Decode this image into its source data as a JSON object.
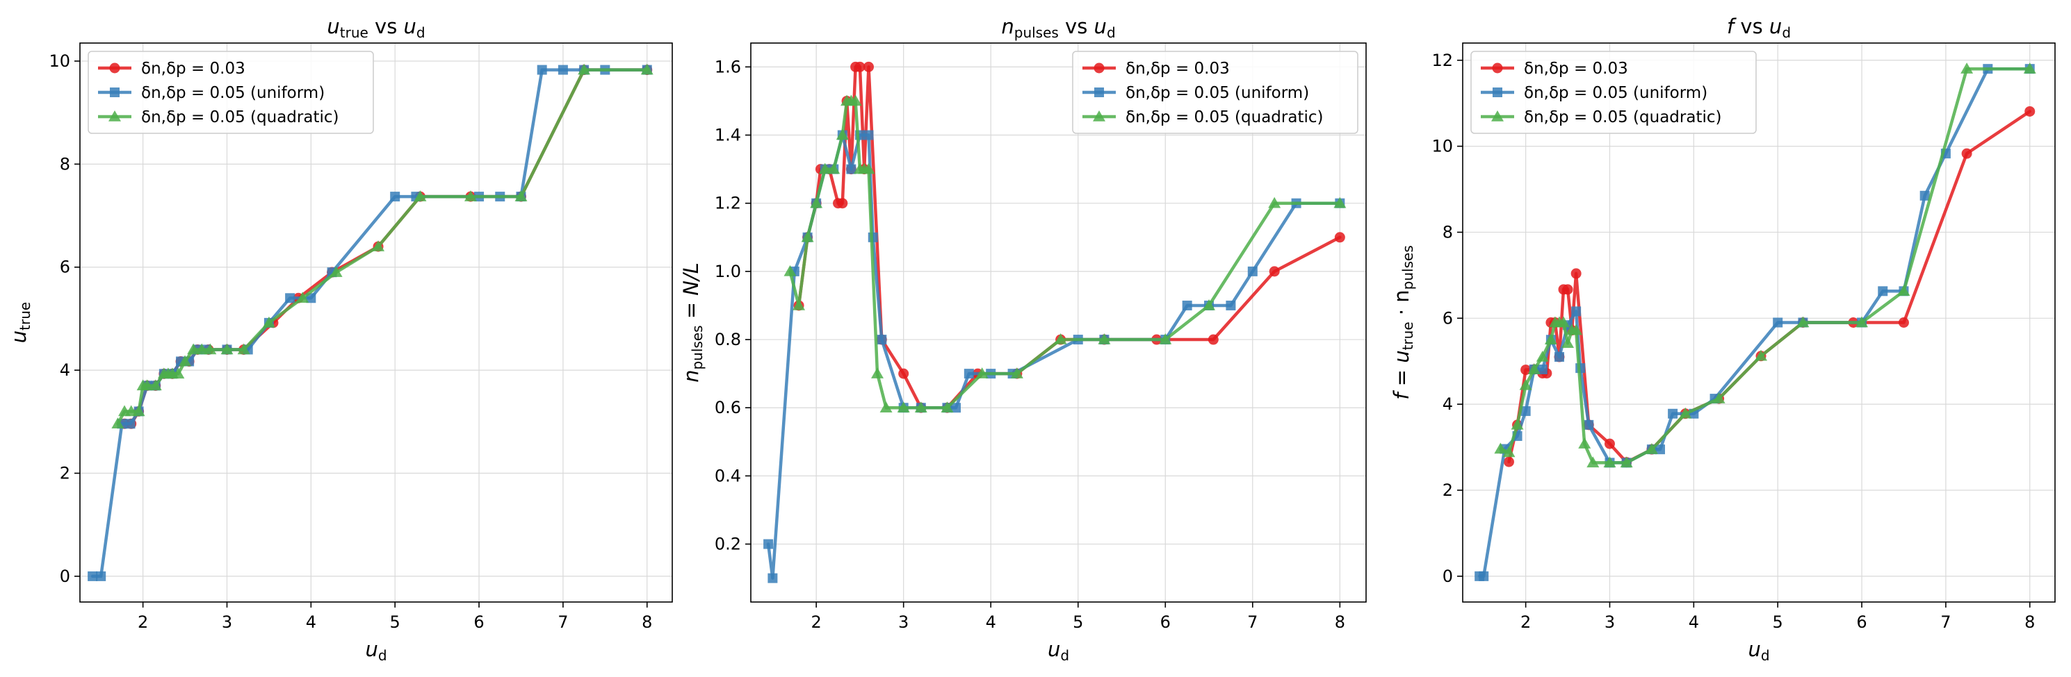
{
  "chart_data": [
    {
      "type": "line",
      "title": {
        "main": "u",
        "sub": "true",
        "rest": " vs ",
        "main2": "u",
        "sub2": "d"
      },
      "xlabel": {
        "main": "u",
        "sub": "d",
        "rest": ""
      },
      "ylabel": {
        "main": "u",
        "sub": "true",
        "rest": ""
      },
      "xlim": [
        1.25,
        8.3
      ],
      "ylim": [
        -0.5,
        10.35
      ],
      "xticks": [
        2,
        3,
        4,
        5,
        6,
        7,
        8
      ],
      "yticks": [
        0,
        2,
        4,
        6,
        8,
        10
      ],
      "ytick_format": "int",
      "grid": true,
      "legend_position": "upper-left",
      "series": [
        {
          "name": "δn,δp = 0.03",
          "color": "#e41a1c",
          "marker": "circle",
          "x": [
            1.78,
            1.86,
            1.95,
            2.05,
            2.15,
            2.25,
            2.35,
            2.45,
            2.55,
            2.65,
            2.78,
            3.0,
            3.2,
            3.55,
            3.85,
            4.25,
            4.8,
            5.3,
            5.9,
            6.5,
            7.25,
            8.0
          ],
          "y": [
            2.96,
            2.96,
            3.2,
            3.7,
            3.7,
            3.93,
            3.93,
            4.17,
            4.17,
            4.4,
            4.4,
            4.4,
            4.4,
            4.92,
            5.4,
            5.9,
            6.4,
            7.37,
            7.37,
            7.37,
            9.83,
            9.83
          ]
        },
        {
          "name": "δn,δp = 0.05 (uniform)",
          "color": "#377eb8",
          "marker": "square",
          "x": [
            1.4,
            1.5,
            1.75,
            1.85,
            1.95,
            2.05,
            2.15,
            2.25,
            2.35,
            2.45,
            2.55,
            2.65,
            2.75,
            3.0,
            3.25,
            3.5,
            3.75,
            4.0,
            4.25,
            5.0,
            5.25,
            6.0,
            6.25,
            6.5,
            6.75,
            7.0,
            7.25,
            7.5,
            8.0
          ],
          "y": [
            0,
            0,
            2.96,
            2.96,
            3.2,
            3.7,
            3.7,
            3.93,
            3.93,
            4.17,
            4.17,
            4.4,
            4.4,
            4.4,
            4.4,
            4.92,
            5.4,
            5.4,
            5.9,
            7.37,
            7.37,
            7.37,
            7.37,
            7.37,
            9.83,
            9.83,
            9.83,
            9.83,
            9.83
          ]
        },
        {
          "name": "δn,δp = 0.05 (quadratic)",
          "color": "#4daf4a",
          "marker": "triangle",
          "x": [
            1.7,
            1.78,
            1.86,
            1.95,
            2.0,
            2.05,
            2.15,
            2.25,
            2.3,
            2.35,
            2.42,
            2.5,
            2.6,
            2.7,
            2.8,
            3.0,
            3.2,
            3.5,
            3.9,
            4.3,
            4.8,
            5.3,
            5.9,
            6.5,
            7.25,
            8.0
          ],
          "y": [
            2.96,
            3.2,
            3.2,
            3.2,
            3.7,
            3.7,
            3.7,
            3.93,
            3.93,
            3.93,
            3.93,
            4.17,
            4.4,
            4.4,
            4.4,
            4.4,
            4.4,
            4.92,
            5.4,
            5.9,
            6.4,
            7.37,
            7.37,
            7.37,
            9.83,
            9.83
          ]
        }
      ]
    },
    {
      "type": "line",
      "title": {
        "main": "n",
        "sub": "pulses",
        "rest": " vs ",
        "main2": "u",
        "sub2": "d"
      },
      "xlabel": {
        "main": "u",
        "sub": "d",
        "rest": ""
      },
      "ylabel": {
        "main": "n",
        "sub": "pulses",
        "rest": " = N/L"
      },
      "xlim": [
        1.25,
        8.3
      ],
      "ylim": [
        0.03,
        1.67
      ],
      "xticks": [
        2,
        3,
        4,
        5,
        6,
        7,
        8
      ],
      "yticks": [
        0.2,
        0.4,
        0.6,
        0.8,
        1.0,
        1.2,
        1.4,
        1.6
      ],
      "ytick_format": "1dp",
      "grid": true,
      "legend_position": "upper-right",
      "series": [
        {
          "name": "δn,δp = 0.03",
          "color": "#e41a1c",
          "marker": "circle",
          "x": [
            1.8,
            1.9,
            2.0,
            2.05,
            2.15,
            2.25,
            2.3,
            2.35,
            2.4,
            2.45,
            2.5,
            2.55,
            2.6,
            2.75,
            3.0,
            3.2,
            3.5,
            3.85,
            4.3,
            4.8,
            5.3,
            5.9,
            6.55,
            7.25,
            8.0
          ],
          "y": [
            0.9,
            1.1,
            1.2,
            1.3,
            1.3,
            1.2,
            1.2,
            1.5,
            1.3,
            1.6,
            1.6,
            1.3,
            1.6,
            0.8,
            0.7,
            0.6,
            0.6,
            0.7,
            0.7,
            0.8,
            0.8,
            0.8,
            0.8,
            1.0,
            1.1
          ]
        },
        {
          "name": "δn,δp = 0.05 (uniform)",
          "color": "#377eb8",
          "marker": "square",
          "x": [
            1.45,
            1.5,
            1.75,
            1.9,
            2.0,
            2.1,
            2.2,
            2.3,
            2.4,
            2.5,
            2.6,
            2.65,
            2.75,
            3.0,
            3.2,
            3.5,
            3.6,
            3.75,
            4.0,
            4.25,
            5.0,
            5.3,
            6.0,
            6.25,
            6.5,
            6.75,
            7.0,
            7.5,
            8.0
          ],
          "y": [
            0.2,
            0.1,
            1.0,
            1.1,
            1.2,
            1.3,
            1.3,
            1.4,
            1.3,
            1.4,
            1.4,
            1.1,
            0.8,
            0.6,
            0.6,
            0.6,
            0.6,
            0.7,
            0.7,
            0.7,
            0.8,
            0.8,
            0.8,
            0.9,
            0.9,
            0.9,
            1.0,
            1.2,
            1.2
          ]
        },
        {
          "name": "δn,δp = 0.05 (quadratic)",
          "color": "#4daf4a",
          "marker": "triangle",
          "x": [
            1.7,
            1.8,
            1.9,
            2.0,
            2.1,
            2.2,
            2.3,
            2.35,
            2.4,
            2.45,
            2.5,
            2.55,
            2.6,
            2.7,
            2.8,
            3.0,
            3.2,
            3.5,
            3.9,
            4.3,
            4.8,
            5.3,
            6.0,
            6.5,
            7.25,
            8.0
          ],
          "y": [
            1.0,
            0.9,
            1.1,
            1.2,
            1.3,
            1.3,
            1.4,
            1.5,
            1.5,
            1.5,
            1.3,
            1.3,
            1.3,
            0.7,
            0.6,
            0.6,
            0.6,
            0.6,
            0.7,
            0.7,
            0.8,
            0.8,
            0.8,
            0.9,
            1.2,
            1.2
          ]
        }
      ]
    },
    {
      "type": "line",
      "title": {
        "main": "f",
        "sub": "",
        "rest": " vs ",
        "main2": "u",
        "sub2": "d"
      },
      "xlabel": {
        "main": "u",
        "sub": "d",
        "rest": ""
      },
      "ylabel": {
        "main": "f = u",
        "sub": "true",
        "rest": " · n",
        "sub3": "pulses"
      },
      "xlim": [
        1.25,
        8.3
      ],
      "ylim": [
        -0.6,
        12.4
      ],
      "xticks": [
        2,
        3,
        4,
        5,
        6,
        7,
        8
      ],
      "yticks": [
        0,
        2,
        4,
        6,
        8,
        10,
        12
      ],
      "ytick_format": "int",
      "grid": true,
      "legend_position": "upper-left",
      "series": [
        {
          "name": "δn,δp = 0.03",
          "color": "#e41a1c",
          "marker": "circle",
          "x": [
            1.8,
            1.9,
            2.0,
            2.1,
            2.2,
            2.25,
            2.3,
            2.35,
            2.4,
            2.45,
            2.5,
            2.55,
            2.6,
            2.75,
            3.0,
            3.2,
            3.5,
            3.9,
            4.3,
            4.8,
            5.3,
            5.9,
            6.5,
            7.25,
            8.0
          ],
          "y": [
            2.66,
            3.52,
            4.8,
            4.81,
            4.72,
            4.72,
            5.9,
            5.9,
            5.1,
            6.67,
            6.67,
            5.72,
            7.04,
            3.52,
            3.08,
            2.65,
            2.95,
            3.78,
            4.13,
            5.12,
            5.9,
            5.9,
            5.9,
            9.83,
            10.81
          ]
        },
        {
          "name": "δn,δp = 0.05 (uniform)",
          "color": "#377eb8",
          "marker": "square",
          "x": [
            1.45,
            1.5,
            1.75,
            1.9,
            2.0,
            2.1,
            2.2,
            2.3,
            2.4,
            2.5,
            2.6,
            2.65,
            2.75,
            3.0,
            3.2,
            3.5,
            3.6,
            3.75,
            4.0,
            4.25,
            5.0,
            5.3,
            6.0,
            6.25,
            6.5,
            6.75,
            7.0,
            7.5,
            8.0
          ],
          "y": [
            0,
            0,
            2.96,
            3.26,
            3.84,
            4.81,
            4.81,
            5.5,
            5.1,
            5.84,
            6.16,
            4.84,
            3.52,
            2.64,
            2.64,
            2.95,
            2.95,
            3.78,
            3.78,
            4.13,
            5.9,
            5.9,
            5.9,
            6.63,
            6.63,
            8.85,
            9.83,
            11.8,
            11.8
          ]
        },
        {
          "name": "δn,δp = 0.05 (quadratic)",
          "color": "#4daf4a",
          "marker": "triangle",
          "x": [
            1.7,
            1.8,
            1.9,
            2.0,
            2.1,
            2.2,
            2.3,
            2.35,
            2.4,
            2.45,
            2.5,
            2.55,
            2.6,
            2.7,
            2.8,
            3.0,
            3.2,
            3.5,
            3.9,
            4.3,
            4.8,
            5.3,
            6.0,
            6.5,
            7.25,
            8.0
          ],
          "y": [
            2.96,
            2.88,
            3.52,
            4.44,
            4.81,
            5.1,
            5.5,
            5.9,
            5.9,
            5.9,
            5.42,
            5.72,
            5.72,
            3.08,
            2.64,
            2.64,
            2.64,
            2.95,
            3.78,
            4.13,
            5.12,
            5.9,
            5.9,
            6.63,
            11.8,
            11.8
          ]
        }
      ]
    }
  ]
}
